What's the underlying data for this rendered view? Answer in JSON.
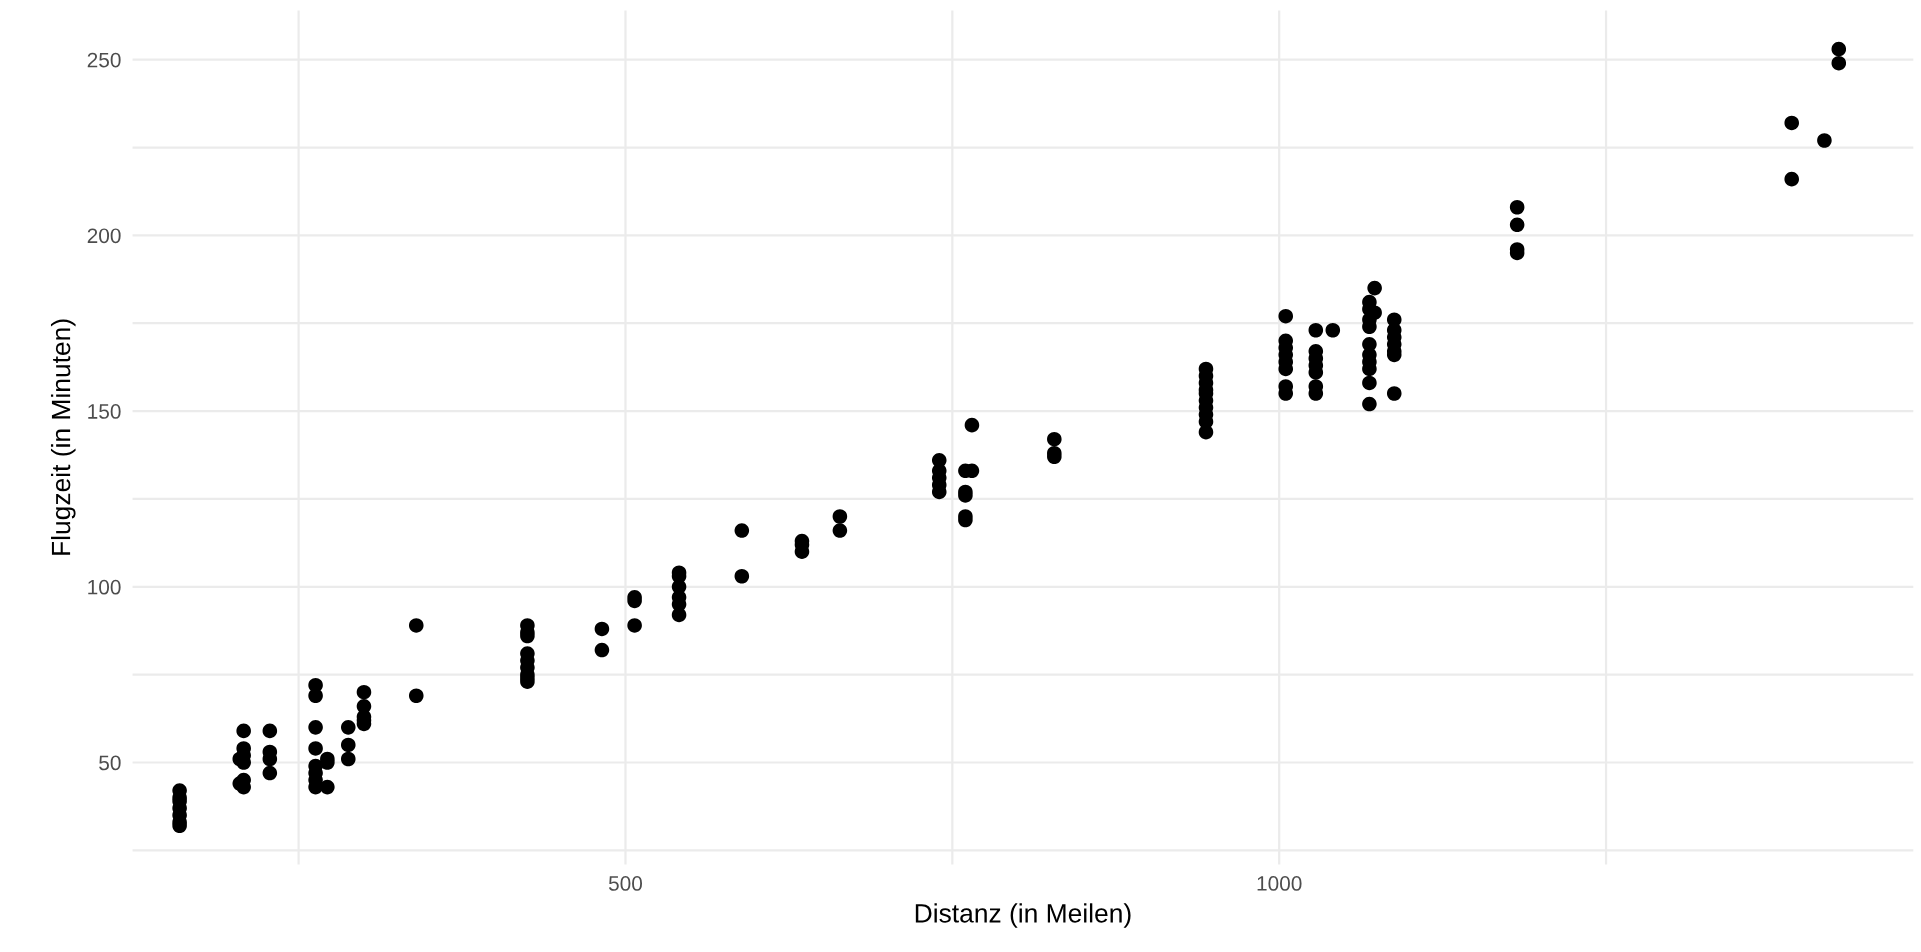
{
  "chart_data": {
    "type": "scatter",
    "xlabel": "Distanz (in Meilen)",
    "ylabel": "Flugzeit (in Minuten)",
    "xlim": [
      123,
      1485
    ],
    "ylim": [
      21,
      264
    ],
    "xticks": [
      {
        "value": 250,
        "label": null
      },
      500,
      {
        "value": 750,
        "label": null
      },
      1000,
      {
        "value": 1250,
        "label": null
      }
    ],
    "yticks": [
      {
        "value": 25,
        "label": null
      },
      50,
      {
        "value": 75,
        "label": null
      },
      100,
      {
        "value": 125,
        "label": null
      },
      150,
      {
        "value": 175,
        "label": null
      },
      200,
      {
        "value": 225,
        "label": null
      },
      250
    ],
    "grid": true,
    "marker": "circle",
    "series": [
      {
        "color": "#000000",
        "x": [
          159,
          159,
          159,
          159,
          159,
          159,
          159,
          208,
          208,
          208,
          208,
          208,
          208,
          205,
          205,
          228,
          228,
          228,
          228,
          263,
          263,
          263,
          263,
          263,
          263,
          263,
          263,
          272,
          272,
          272,
          288,
          288,
          288,
          300,
          300,
          300,
          300,
          300,
          340,
          340,
          425,
          425,
          425,
          425,
          425,
          425,
          425,
          425,
          425,
          482,
          482,
          507,
          507,
          507,
          541,
          541,
          541,
          541,
          541,
          541,
          589,
          589,
          635,
          635,
          635,
          664,
          664,
          740,
          740,
          740,
          740,
          740,
          760,
          760,
          760,
          760,
          760,
          765,
          765,
          828,
          828,
          828,
          944,
          944,
          944,
          944,
          944,
          944,
          944,
          944,
          944,
          944,
          1005,
          1005,
          1005,
          1005,
          1005,
          1005,
          1005,
          1005,
          1028,
          1028,
          1028,
          1028,
          1028,
          1028,
          1028,
          1041,
          1069,
          1069,
          1069,
          1069,
          1069,
          1069,
          1069,
          1069,
          1069,
          1069,
          1073,
          1073,
          1088,
          1088,
          1088,
          1088,
          1088,
          1088,
          1088,
          1182,
          1182,
          1182,
          1182,
          1392,
          1392,
          1417,
          1428,
          1428
        ],
        "values": [
          42,
          40,
          39,
          37,
          35,
          33,
          32,
          59,
          54,
          52,
          50,
          45,
          43,
          51,
          44,
          59,
          53,
          51,
          47,
          72,
          69,
          60,
          54,
          49,
          47,
          45,
          43,
          51,
          50,
          43,
          60,
          55,
          51,
          70,
          66,
          63,
          62,
          61,
          89,
          69,
          89,
          87,
          86,
          81,
          79,
          77,
          75,
          74,
          73,
          88,
          82,
          97,
          96,
          89,
          104,
          103,
          100,
          97,
          95,
          92,
          116,
          103,
          113,
          112,
          110,
          120,
          116,
          136,
          133,
          131,
          129,
          127,
          133,
          127,
          126,
          120,
          119,
          146,
          133,
          142,
          138,
          137,
          162,
          160,
          158,
          156,
          155,
          153,
          151,
          149,
          147,
          144,
          177,
          170,
          168,
          166,
          164,
          162,
          157,
          155,
          173,
          167,
          165,
          163,
          161,
          157,
          155,
          173,
          181,
          179,
          176,
          174,
          169,
          166,
          164,
          162,
          158,
          152,
          185,
          178,
          176,
          173,
          171,
          169,
          167,
          166,
          155,
          208,
          203,
          196,
          195,
          232,
          216,
          227,
          253,
          249
        ]
      }
    ]
  }
}
